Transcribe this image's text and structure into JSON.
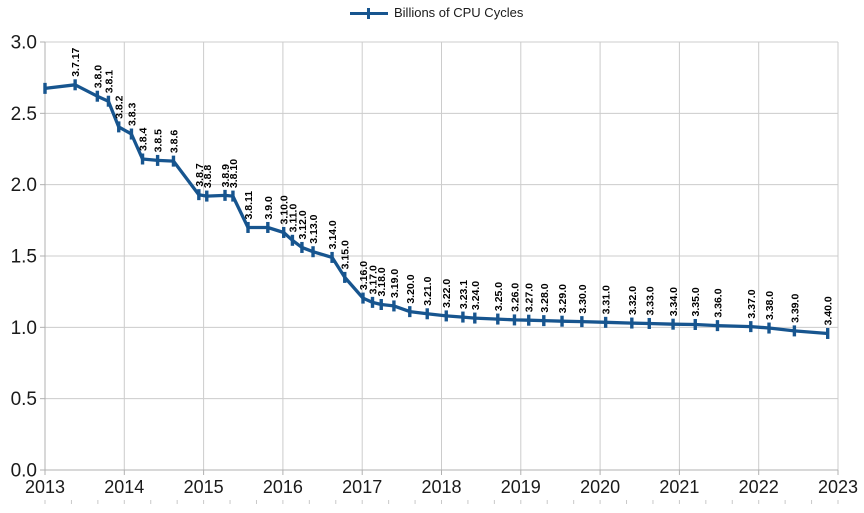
{
  "chart_data": {
    "type": "line",
    "title": "",
    "legend_label": "Billions of CPU Cycles",
    "legend_position": "top",
    "grid": true,
    "line_color": "#17558F",
    "grid_color": "#cccccc",
    "axis_color": "#b0b0b0",
    "text_color": "#1a1a1a",
    "data_label_color": "#000000",
    "x_axis": {
      "min": 2013,
      "max": 2023,
      "major_step": 1,
      "tick_labels": [
        "2013",
        "2014",
        "2015",
        "2016",
        "2017",
        "2018",
        "2019",
        "2020",
        "2021",
        "2022",
        "2023"
      ]
    },
    "y_axis": {
      "min": 0.0,
      "max": 3.0,
      "major_step": 0.5,
      "tick_labels": [
        "3.0",
        "2.5",
        "2.0",
        "1.5",
        "1.0",
        "0.5",
        "0.0"
      ]
    },
    "points": [
      {
        "version": "",
        "x": 2013.0,
        "y": 2.675
      },
      {
        "version": "3.7.17",
        "x": 2013.38,
        "y": 2.7
      },
      {
        "version": "3.8.0",
        "x": 2013.66,
        "y": 2.62
      },
      {
        "version": "3.8.1",
        "x": 2013.8,
        "y": 2.585
      },
      {
        "version": "3.8.2",
        "x": 2013.93,
        "y": 2.405
      },
      {
        "version": "3.8.3",
        "x": 2014.09,
        "y": 2.355
      },
      {
        "version": "3.8.4",
        "x": 2014.23,
        "y": 2.18
      },
      {
        "version": "3.8.5",
        "x": 2014.42,
        "y": 2.17
      },
      {
        "version": "3.8.6",
        "x": 2014.62,
        "y": 2.165
      },
      {
        "version": "3.8.7",
        "x": 2014.94,
        "y": 1.93
      },
      {
        "version": "3.8.8",
        "x": 2015.04,
        "y": 1.92
      },
      {
        "version": "3.8.9",
        "x": 2015.27,
        "y": 1.925
      },
      {
        "version": "3.8.10",
        "x": 2015.37,
        "y": 1.92
      },
      {
        "version": "3.8.11",
        "x": 2015.56,
        "y": 1.7
      },
      {
        "version": "3.9.0",
        "x": 2015.81,
        "y": 1.7
      },
      {
        "version": "3.10.0",
        "x": 2016.01,
        "y": 1.665
      },
      {
        "version": "3.11.0",
        "x": 2016.12,
        "y": 1.61
      },
      {
        "version": "3.12.0",
        "x": 2016.24,
        "y": 1.56
      },
      {
        "version": "3.13.0",
        "x": 2016.38,
        "y": 1.53
      },
      {
        "version": "3.14.0",
        "x": 2016.62,
        "y": 1.49
      },
      {
        "version": "3.15.0",
        "x": 2016.78,
        "y": 1.35
      },
      {
        "version": "3.16.0",
        "x": 2017.01,
        "y": 1.205
      },
      {
        "version": "3.17.0",
        "x": 2017.13,
        "y": 1.175
      },
      {
        "version": "3.18.0",
        "x": 2017.24,
        "y": 1.16
      },
      {
        "version": "3.19.0",
        "x": 2017.4,
        "y": 1.15
      },
      {
        "version": "3.20.0",
        "x": 2017.6,
        "y": 1.11
      },
      {
        "version": "3.21.0",
        "x": 2017.82,
        "y": 1.095
      },
      {
        "version": "3.22.0",
        "x": 2018.06,
        "y": 1.08
      },
      {
        "version": "3.23.1",
        "x": 2018.27,
        "y": 1.072
      },
      {
        "version": "3.24.0",
        "x": 2018.42,
        "y": 1.065
      },
      {
        "version": "3.25.0",
        "x": 2018.71,
        "y": 1.058
      },
      {
        "version": "3.26.0",
        "x": 2018.92,
        "y": 1.052
      },
      {
        "version": "3.27.0",
        "x": 2019.1,
        "y": 1.05
      },
      {
        "version": "3.28.0",
        "x": 2019.29,
        "y": 1.047
      },
      {
        "version": "3.29.0",
        "x": 2019.52,
        "y": 1.043
      },
      {
        "version": "3.30.0",
        "x": 2019.77,
        "y": 1.04
      },
      {
        "version": "3.31.0",
        "x": 2020.07,
        "y": 1.035
      },
      {
        "version": "3.32.0",
        "x": 2020.4,
        "y": 1.03
      },
      {
        "version": "3.33.0",
        "x": 2020.62,
        "y": 1.027
      },
      {
        "version": "3.34.0",
        "x": 2020.92,
        "y": 1.022
      },
      {
        "version": "3.35.0",
        "x": 2021.2,
        "y": 1.02
      },
      {
        "version": "3.36.0",
        "x": 2021.48,
        "y": 1.012
      },
      {
        "version": "3.37.0",
        "x": 2021.9,
        "y": 1.005
      },
      {
        "version": "3.38.0",
        "x": 2022.13,
        "y": 0.995
      },
      {
        "version": "3.39.0",
        "x": 2022.45,
        "y": 0.975
      },
      {
        "version": "3.40.0",
        "x": 2022.87,
        "y": 0.957
      }
    ]
  }
}
